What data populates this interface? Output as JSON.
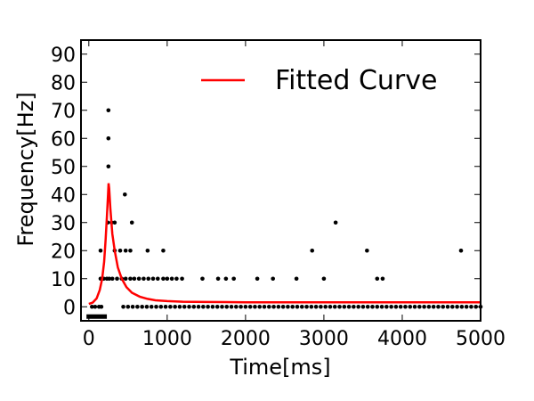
{
  "chart_data": {
    "type": "scatter",
    "xlabel": "Time[ms]",
    "ylabel": "Frequency[Hz]",
    "xlim": [
      -100,
      5000
    ],
    "ylim": [
      -5,
      95
    ],
    "x_ticks": [
      0,
      1000,
      2000,
      3000,
      4000,
      5000
    ],
    "y_ticks": [
      0,
      10,
      20,
      30,
      40,
      50,
      60,
      70,
      80,
      90
    ],
    "grid": false,
    "legend": {
      "position": "top-right",
      "entries": [
        {
          "label": "Fitted Curve",
          "color": "#ff0000"
        }
      ]
    },
    "stimulus_bar": {
      "x_start": -30,
      "x_end": 230,
      "y": -3.5,
      "color": "#000000"
    },
    "scatter_color": "#000000",
    "scatter_points": [
      [
        40,
        0
      ],
      [
        80,
        0
      ],
      [
        130,
        0
      ],
      [
        160,
        0
      ],
      [
        150,
        10
      ],
      [
        190,
        10
      ],
      [
        230,
        10
      ],
      [
        260,
        10
      ],
      [
        300,
        10
      ],
      [
        360,
        10
      ],
      [
        420,
        10
      ],
      [
        470,
        10
      ],
      [
        530,
        10
      ],
      [
        580,
        10
      ],
      [
        640,
        10
      ],
      [
        700,
        10
      ],
      [
        760,
        10
      ],
      [
        820,
        10
      ],
      [
        880,
        10
      ],
      [
        950,
        10
      ],
      [
        1000,
        10
      ],
      [
        1060,
        10
      ],
      [
        1120,
        10
      ],
      [
        1190,
        10
      ],
      [
        1450,
        10
      ],
      [
        1650,
        10
      ],
      [
        1750,
        10
      ],
      [
        1850,
        10
      ],
      [
        2150,
        10
      ],
      [
        2350,
        10
      ],
      [
        2650,
        10
      ],
      [
        3000,
        10
      ],
      [
        3680,
        10
      ],
      [
        3750,
        10
      ],
      [
        150,
        20
      ],
      [
        330,
        20
      ],
      [
        400,
        20
      ],
      [
        470,
        20
      ],
      [
        530,
        20
      ],
      [
        750,
        20
      ],
      [
        950,
        20
      ],
      [
        2850,
        20
      ],
      [
        3550,
        20
      ],
      [
        4750,
        20
      ],
      [
        240,
        30
      ],
      [
        290,
        30
      ],
      [
        330,
        30
      ],
      [
        550,
        30
      ],
      [
        3150,
        30
      ],
      [
        460,
        40
      ],
      [
        250,
        50
      ],
      [
        250,
        60
      ],
      [
        250,
        70
      ],
      [
        440,
        0
      ],
      [
        500,
        0
      ],
      [
        560,
        0
      ],
      [
        620,
        0
      ],
      [
        680,
        0
      ],
      [
        740,
        0
      ],
      [
        800,
        0
      ],
      [
        860,
        0
      ],
      [
        920,
        0
      ],
      [
        980,
        0
      ],
      [
        1040,
        0
      ],
      [
        1100,
        0
      ],
      [
        1160,
        0
      ],
      [
        1220,
        0
      ],
      [
        1280,
        0
      ],
      [
        1340,
        0
      ],
      [
        1400,
        0
      ],
      [
        1460,
        0
      ],
      [
        1520,
        0
      ],
      [
        1580,
        0
      ],
      [
        1640,
        0
      ],
      [
        1700,
        0
      ],
      [
        1760,
        0
      ],
      [
        1820,
        0
      ],
      [
        1880,
        0
      ],
      [
        1940,
        0
      ],
      [
        2000,
        0
      ],
      [
        2060,
        0
      ],
      [
        2120,
        0
      ],
      [
        2180,
        0
      ],
      [
        2240,
        0
      ],
      [
        2300,
        0
      ],
      [
        2360,
        0
      ],
      [
        2420,
        0
      ],
      [
        2480,
        0
      ],
      [
        2540,
        0
      ],
      [
        2600,
        0
      ],
      [
        2660,
        0
      ],
      [
        2720,
        0
      ],
      [
        2780,
        0
      ],
      [
        2840,
        0
      ],
      [
        2900,
        0
      ],
      [
        2960,
        0
      ],
      [
        3020,
        0
      ],
      [
        3080,
        0
      ],
      [
        3140,
        0
      ],
      [
        3200,
        0
      ],
      [
        3260,
        0
      ],
      [
        3320,
        0
      ],
      [
        3380,
        0
      ],
      [
        3440,
        0
      ],
      [
        3500,
        0
      ],
      [
        3560,
        0
      ],
      [
        3620,
        0
      ],
      [
        3680,
        0
      ],
      [
        3740,
        0
      ],
      [
        3800,
        0
      ],
      [
        3860,
        0
      ],
      [
        3920,
        0
      ],
      [
        3980,
        0
      ],
      [
        4040,
        0
      ],
      [
        4100,
        0
      ],
      [
        4160,
        0
      ],
      [
        4220,
        0
      ],
      [
        4280,
        0
      ],
      [
        4340,
        0
      ],
      [
        4400,
        0
      ],
      [
        4460,
        0
      ],
      [
        4520,
        0
      ],
      [
        4580,
        0
      ],
      [
        4640,
        0
      ],
      [
        4700,
        0
      ],
      [
        4760,
        0
      ],
      [
        4820,
        0
      ],
      [
        4880,
        0
      ],
      [
        4940,
        0
      ],
      [
        5000,
        0
      ]
    ],
    "fitted_curve": {
      "color": "#ff0000",
      "points": [
        [
          0,
          1
        ],
        [
          50,
          1.5
        ],
        [
          100,
          3
        ],
        [
          140,
          6
        ],
        [
          170,
          10
        ],
        [
          195,
          16
        ],
        [
          215,
          24
        ],
        [
          230,
          32
        ],
        [
          245,
          40
        ],
        [
          252,
          44
        ],
        [
          260,
          42
        ],
        [
          275,
          35
        ],
        [
          300,
          26
        ],
        [
          330,
          20
        ],
        [
          370,
          14
        ],
        [
          420,
          10
        ],
        [
          480,
          7
        ],
        [
          550,
          5
        ],
        [
          650,
          3.6
        ],
        [
          750,
          2.8
        ],
        [
          850,
          2.3
        ],
        [
          1000,
          2
        ],
        [
          1200,
          1.8
        ],
        [
          1500,
          1.7
        ],
        [
          2000,
          1.6
        ],
        [
          3000,
          1.6
        ],
        [
          4000,
          1.6
        ],
        [
          5000,
          1.6
        ]
      ]
    }
  }
}
